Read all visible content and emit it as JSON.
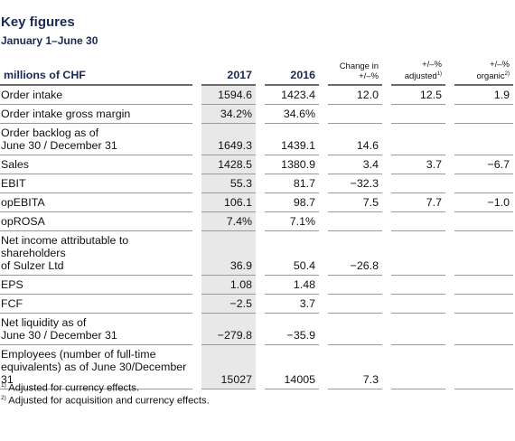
{
  "title": "Key figures",
  "subtitle": "January 1–June 30",
  "table": {
    "headers": {
      "label": "millions of CHF",
      "y2017": "2017",
      "y2016": "2016",
      "change_l1": "Change in",
      "change_l2": "+/–%",
      "adj_l1": "+/–%",
      "adj_l2": "adjusted",
      "adj_sup": "1)",
      "org_l1": "+/–%",
      "org_l2": "organic",
      "org_sup": "2)"
    },
    "rows": [
      {
        "label": "Order intake",
        "v2017": "1594.6",
        "v2016": "1423.4",
        "change": "12.0",
        "adjusted": "12.5",
        "organic": "1.9"
      },
      {
        "label": "Order intake gross margin",
        "v2017": "34.2%",
        "v2016": "34.6%",
        "change": "",
        "adjusted": "",
        "organic": ""
      },
      {
        "label": "Order backlog as of\nJune 30 / December 31",
        "v2017": "1649.3",
        "v2016": "1439.1",
        "change": "14.6",
        "adjusted": "",
        "organic": ""
      },
      {
        "label": "Sales",
        "v2017": "1428.5",
        "v2016": "1380.9",
        "change": "3.4",
        "adjusted": "3.7",
        "organic": "−6.7"
      },
      {
        "label": "EBIT",
        "v2017": "55.3",
        "v2016": "81.7",
        "change": "−32.3",
        "adjusted": "",
        "organic": ""
      },
      {
        "label": "opEBITA",
        "v2017": "106.1",
        "v2016": "98.7",
        "change": "7.5",
        "adjusted": "7.7",
        "organic": "−1.0"
      },
      {
        "label": "opROSA",
        "v2017": "7.4%",
        "v2016": "7.1%",
        "change": "",
        "adjusted": "",
        "organic": ""
      },
      {
        "label": "Net income attributable to shareholders\nof Sulzer Ltd",
        "v2017": "36.9",
        "v2016": "50.4",
        "change": "−26.8",
        "adjusted": "",
        "organic": ""
      },
      {
        "label": "EPS",
        "v2017": "1.08",
        "v2016": "1.48",
        "change": "",
        "adjusted": "",
        "organic": ""
      },
      {
        "label": "FCF",
        "v2017": "−2.5",
        "v2016": "3.7",
        "change": "",
        "adjusted": "",
        "organic": ""
      },
      {
        "label": "Net liquidity as of\nJune 30 / December 31",
        "v2017": "−279.8",
        "v2016": "−35.9",
        "change": "",
        "adjusted": "",
        "organic": ""
      },
      {
        "label": "Employees (number of full-time\nequivalents) as of June 30/December 31",
        "v2017": "15027",
        "v2016": "14005",
        "change": "7.3",
        "adjusted": "",
        "organic": ""
      }
    ]
  },
  "footnotes": [
    {
      "marker": "1)",
      "text": " Adjusted for currency effects."
    },
    {
      "marker": "2)",
      "text": " Adjusted for acquisition and currency effects."
    }
  ],
  "colors": {
    "heading": "#1a2a56",
    "highlight_column": "#e8e8e8",
    "rule": "#9a9a9a"
  }
}
